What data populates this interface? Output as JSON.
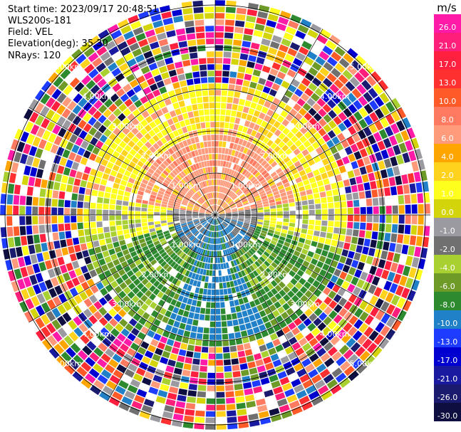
{
  "header": {
    "start_time": "Start time: 2023/09/17 20:48:51",
    "instrument": "WLS200s-181",
    "field": "Field: VEL",
    "elevation": "Elevation(deg): 35.30",
    "nrays": "NRays: 120"
  },
  "colorbar": {
    "unit": "m/s",
    "ticks": [
      "26.0",
      "21.0",
      "17.0",
      "13.0",
      "10.0",
      "8.0",
      "6.0",
      "4.0",
      "2.0",
      "1.0",
      "0.0",
      "-1.0",
      "-2.0",
      "-4.0",
      "-6.0",
      "-8.0",
      "-10.0",
      "-13.0",
      "-17.0",
      "-21.0",
      "-26.0",
      "-30.0"
    ],
    "colors": [
      "#ff1aa8",
      "#ff1f7a",
      "#ff2040",
      "#ff3030",
      "#ff5a28",
      "#ff7a60",
      "#ff9a7a",
      "#ffa500",
      "#ffd21e",
      "#ffff1e",
      "#d4d40a",
      "#9a9aa0",
      "#707070",
      "#a8d030",
      "#6e9a28",
      "#2e8a2e",
      "#2080c8",
      "#1e3cff",
      "#0000d0",
      "#1a1aa0",
      "#1a1a6e",
      "#0e0e40"
    ]
  },
  "range_labels": [
    "1.00km",
    "2.00km",
    "3.00km",
    "4.00km",
    "5.00km"
  ],
  "chart_data": {
    "type": "ppi",
    "field": "VEL",
    "nrays": 120,
    "range_rings_km": [
      1,
      2,
      3,
      4,
      5
    ],
    "color_scale_mps": [
      26.0,
      21.0,
      17.0,
      13.0,
      10.0,
      8.0,
      6.0,
      4.0,
      2.0,
      1.0,
      0.0,
      -1.0,
      -2.0,
      -4.0,
      -6.0,
      -8.0,
      -10.0,
      -13.0,
      -17.0,
      -21.0,
      -26.0,
      -30.0
    ]
  }
}
